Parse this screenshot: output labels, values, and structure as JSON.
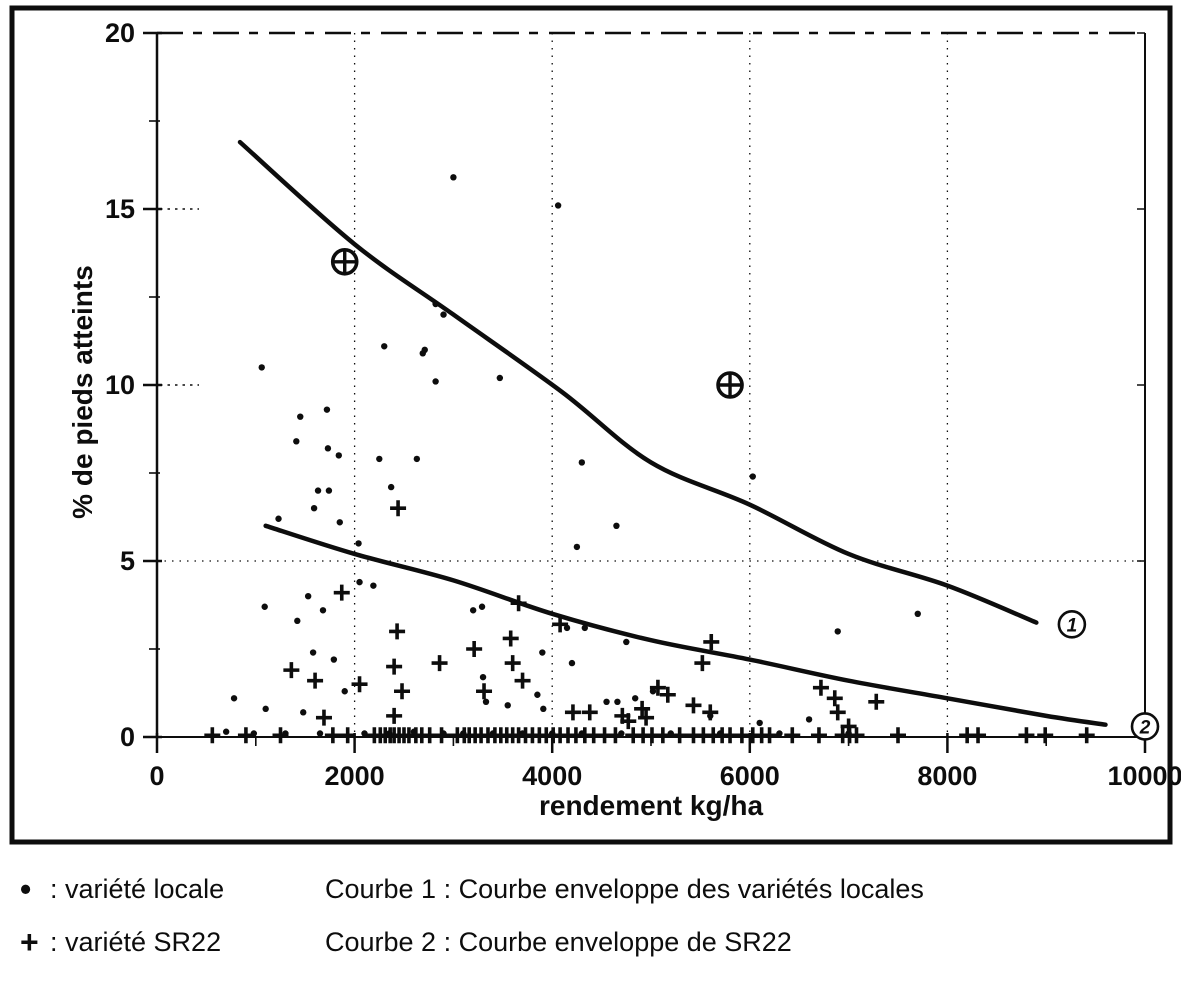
{
  "accent_colors": {
    "ink": "#0d0d0d",
    "paper": "#ffffff"
  },
  "legend": {
    "rows": [
      {
        "symbol": "•",
        "series_label": ": variété locale",
        "curve_label": "Courbe 1 : Courbe enveloppe des variétés locales"
      },
      {
        "symbol": "+",
        "series_label": ": variété SR22",
        "curve_label": "Courbe 2 : Courbe enveloppe de SR22"
      }
    ]
  },
  "chart_data": {
    "type": "scatter",
    "title": "",
    "xlabel": "rendement kg/ha",
    "ylabel": "% de pieds atteints",
    "xlim": [
      0,
      10000
    ],
    "ylim": [
      0,
      20
    ],
    "x_ticks": [
      0,
      2000,
      4000,
      6000,
      8000,
      10000
    ],
    "x_minor_step": 1000,
    "y_ticks": [
      0,
      5,
      10,
      15,
      20
    ],
    "y_minor_step": 2.5,
    "grid": {
      "x_dotted": [
        2000,
        4000,
        6000,
        8000
      ],
      "y_dotted": [
        5
      ],
      "y_stub_dotted": [
        10,
        15
      ],
      "top_dashed_at_y": 20
    },
    "legend_position": "below-figure",
    "series": [
      {
        "name": "variété locale",
        "marker": "dot",
        "points": [
          [
            3000,
            15.9
          ],
          [
            4060,
            15.1
          ],
          [
            2820,
            12.3
          ],
          [
            2900,
            12.0
          ],
          [
            2300,
            11.1
          ],
          [
            2710,
            11.0
          ],
          [
            2690,
            10.9
          ],
          [
            1060,
            10.5
          ],
          [
            3470,
            10.2
          ],
          [
            2820,
            10.1
          ],
          [
            1720,
            9.3
          ],
          [
            1450,
            9.1
          ],
          [
            1410,
            8.4
          ],
          [
            1730,
            8.2
          ],
          [
            1840,
            8.0
          ],
          [
            2250,
            7.9
          ],
          [
            2630,
            7.9
          ],
          [
            4300,
            7.8
          ],
          [
            6030,
            7.4
          ],
          [
            2370,
            7.1
          ],
          [
            1630,
            7.0
          ],
          [
            1740,
            7.0
          ],
          [
            1590,
            6.5
          ],
          [
            1230,
            6.2
          ],
          [
            1850,
            6.1
          ],
          [
            4650,
            6.0
          ],
          [
            2040,
            5.5
          ],
          [
            4250,
            5.4
          ],
          [
            2050,
            4.4
          ],
          [
            2190,
            4.3
          ],
          [
            1530,
            4.0
          ],
          [
            3290,
            3.7
          ],
          [
            1090,
            3.7
          ],
          [
            3200,
            3.6
          ],
          [
            1680,
            3.6
          ],
          [
            7700,
            3.5
          ],
          [
            1420,
            3.3
          ],
          [
            4330,
            3.1
          ],
          [
            4150,
            3.1
          ],
          [
            6890,
            3.0
          ],
          [
            4750,
            2.7
          ],
          [
            1580,
            2.4
          ],
          [
            3900,
            2.4
          ],
          [
            1790,
            2.2
          ],
          [
            4200,
            2.1
          ],
          [
            3300,
            1.7
          ],
          [
            1900,
            1.3
          ],
          [
            5020,
            1.3
          ],
          [
            3850,
            1.2
          ],
          [
            780,
            1.1
          ],
          [
            4840,
            1.1
          ],
          [
            3330,
            1.0
          ],
          [
            4550,
            1.0
          ],
          [
            4660,
            1.0
          ],
          [
            3550,
            0.9
          ],
          [
            3910,
            0.8
          ],
          [
            1100,
            0.8
          ],
          [
            1480,
            0.7
          ],
          [
            5600,
            0.6
          ],
          [
            6600,
            0.5
          ],
          [
            6100,
            0.4
          ],
          [
            700,
            0.15
          ],
          [
            980,
            0.1
          ],
          [
            1300,
            0.1
          ],
          [
            1650,
            0.1
          ],
          [
            2100,
            0.1
          ],
          [
            2350,
            0.1
          ],
          [
            2600,
            0.15
          ],
          [
            2900,
            0.1
          ],
          [
            3100,
            0.1
          ],
          [
            3400,
            0.1
          ],
          [
            3700,
            0.1
          ],
          [
            4000,
            0.1
          ],
          [
            4300,
            0.1
          ],
          [
            4700,
            0.1
          ],
          [
            5200,
            0.1
          ],
          [
            5700,
            0.1
          ],
          [
            6300,
            0.1
          ],
          [
            7000,
            0.1
          ]
        ]
      },
      {
        "name": "variété SR22",
        "marker": "plus",
        "points": [
          [
            2440,
            6.5
          ],
          [
            1870,
            4.1
          ],
          [
            3660,
            3.8
          ],
          [
            4080,
            3.2
          ],
          [
            2430,
            3.0
          ],
          [
            3580,
            2.8
          ],
          [
            5610,
            2.7
          ],
          [
            3210,
            2.5
          ],
          [
            2860,
            2.1
          ],
          [
            3600,
            2.1
          ],
          [
            5520,
            2.1
          ],
          [
            2400,
            2.0
          ],
          [
            1360,
            1.9
          ],
          [
            1600,
            1.6
          ],
          [
            3700,
            1.6
          ],
          [
            2050,
            1.5
          ],
          [
            5070,
            1.4
          ],
          [
            6720,
            1.4
          ],
          [
            2480,
            1.3
          ],
          [
            3310,
            1.3
          ],
          [
            5170,
            1.2
          ],
          [
            6860,
            1.1
          ],
          [
            7280,
            1.0
          ],
          [
            5430,
            0.9
          ],
          [
            4910,
            0.8
          ],
          [
            5600,
            0.7
          ],
          [
            6890,
            0.7
          ],
          [
            4380,
            0.7
          ],
          [
            4210,
            0.7
          ],
          [
            4710,
            0.6
          ],
          [
            2400,
            0.6
          ],
          [
            1690,
            0.55
          ],
          [
            4950,
            0.55
          ],
          [
            4770,
            0.45
          ],
          [
            7000,
            0.3
          ],
          [
            560,
            0.05
          ],
          [
            900,
            0.05
          ],
          [
            1250,
            0.05
          ],
          [
            1780,
            0.05
          ],
          [
            1930,
            0.05
          ],
          [
            2200,
            0.05
          ],
          [
            2260,
            0.05
          ],
          [
            2310,
            0.05
          ],
          [
            2360,
            0.05
          ],
          [
            2400,
            0.05
          ],
          [
            2450,
            0.05
          ],
          [
            2500,
            0.05
          ],
          [
            2550,
            0.05
          ],
          [
            2620,
            0.05
          ],
          [
            2680,
            0.05
          ],
          [
            2760,
            0.05
          ],
          [
            2880,
            0.05
          ],
          [
            3040,
            0.05
          ],
          [
            3110,
            0.05
          ],
          [
            3160,
            0.05
          ],
          [
            3220,
            0.05
          ],
          [
            3280,
            0.05
          ],
          [
            3350,
            0.05
          ],
          [
            3420,
            0.05
          ],
          [
            3480,
            0.05
          ],
          [
            3540,
            0.05
          ],
          [
            3600,
            0.05
          ],
          [
            3660,
            0.05
          ],
          [
            3730,
            0.05
          ],
          [
            3800,
            0.05
          ],
          [
            3870,
            0.05
          ],
          [
            3940,
            0.05
          ],
          [
            4010,
            0.05
          ],
          [
            4080,
            0.05
          ],
          [
            4160,
            0.05
          ],
          [
            4240,
            0.05
          ],
          [
            4330,
            0.05
          ],
          [
            4420,
            0.05
          ],
          [
            4530,
            0.05
          ],
          [
            4640,
            0.05
          ],
          [
            4820,
            0.05
          ],
          [
            4920,
            0.05
          ],
          [
            5010,
            0.05
          ],
          [
            5120,
            0.05
          ],
          [
            5290,
            0.05
          ],
          [
            5430,
            0.05
          ],
          [
            5530,
            0.05
          ],
          [
            5630,
            0.05
          ],
          [
            5720,
            0.05
          ],
          [
            5800,
            0.05
          ],
          [
            5920,
            0.05
          ],
          [
            6030,
            0.05
          ],
          [
            6120,
            0.05
          ],
          [
            6200,
            0.05
          ],
          [
            6430,
            0.05
          ],
          [
            6700,
            0.05
          ],
          [
            6940,
            0.05
          ],
          [
            7010,
            0.05
          ],
          [
            7080,
            0.05
          ],
          [
            7500,
            0.05
          ],
          [
            8200,
            0.05
          ],
          [
            8310,
            0.05
          ],
          [
            8800,
            0.05
          ],
          [
            8990,
            0.05
          ],
          [
            9410,
            0.05
          ]
        ]
      },
      {
        "name": "points cerclés",
        "marker": "circle-plus",
        "points": [
          [
            1900,
            13.5
          ],
          [
            5800,
            10.0
          ]
        ]
      }
    ],
    "curves": [
      {
        "name": "Courbe 1",
        "description": "Courbe enveloppe des variétés locales",
        "points": [
          [
            840,
            16.9
          ],
          [
            2000,
            14.0
          ],
          [
            3000,
            12.0
          ],
          [
            4100,
            9.8
          ],
          [
            5000,
            7.8
          ],
          [
            6000,
            6.6
          ],
          [
            7000,
            5.2
          ],
          [
            8000,
            4.3
          ],
          [
            8900,
            3.25
          ]
        ],
        "label": {
          "digit": "1",
          "at": [
            9260,
            3.2
          ]
        }
      },
      {
        "name": "Courbe 2",
        "description": "Courbe enveloppe de SR22",
        "points": [
          [
            1100,
            6.0
          ],
          [
            2000,
            5.2
          ],
          [
            3000,
            4.45
          ],
          [
            4000,
            3.5
          ],
          [
            5000,
            2.75
          ],
          [
            6000,
            2.2
          ],
          [
            7000,
            1.6
          ],
          [
            8000,
            1.1
          ],
          [
            9000,
            0.6
          ],
          [
            9600,
            0.35
          ]
        ],
        "label": {
          "digit": "2",
          "at": [
            10000,
            0.3
          ]
        }
      }
    ]
  }
}
